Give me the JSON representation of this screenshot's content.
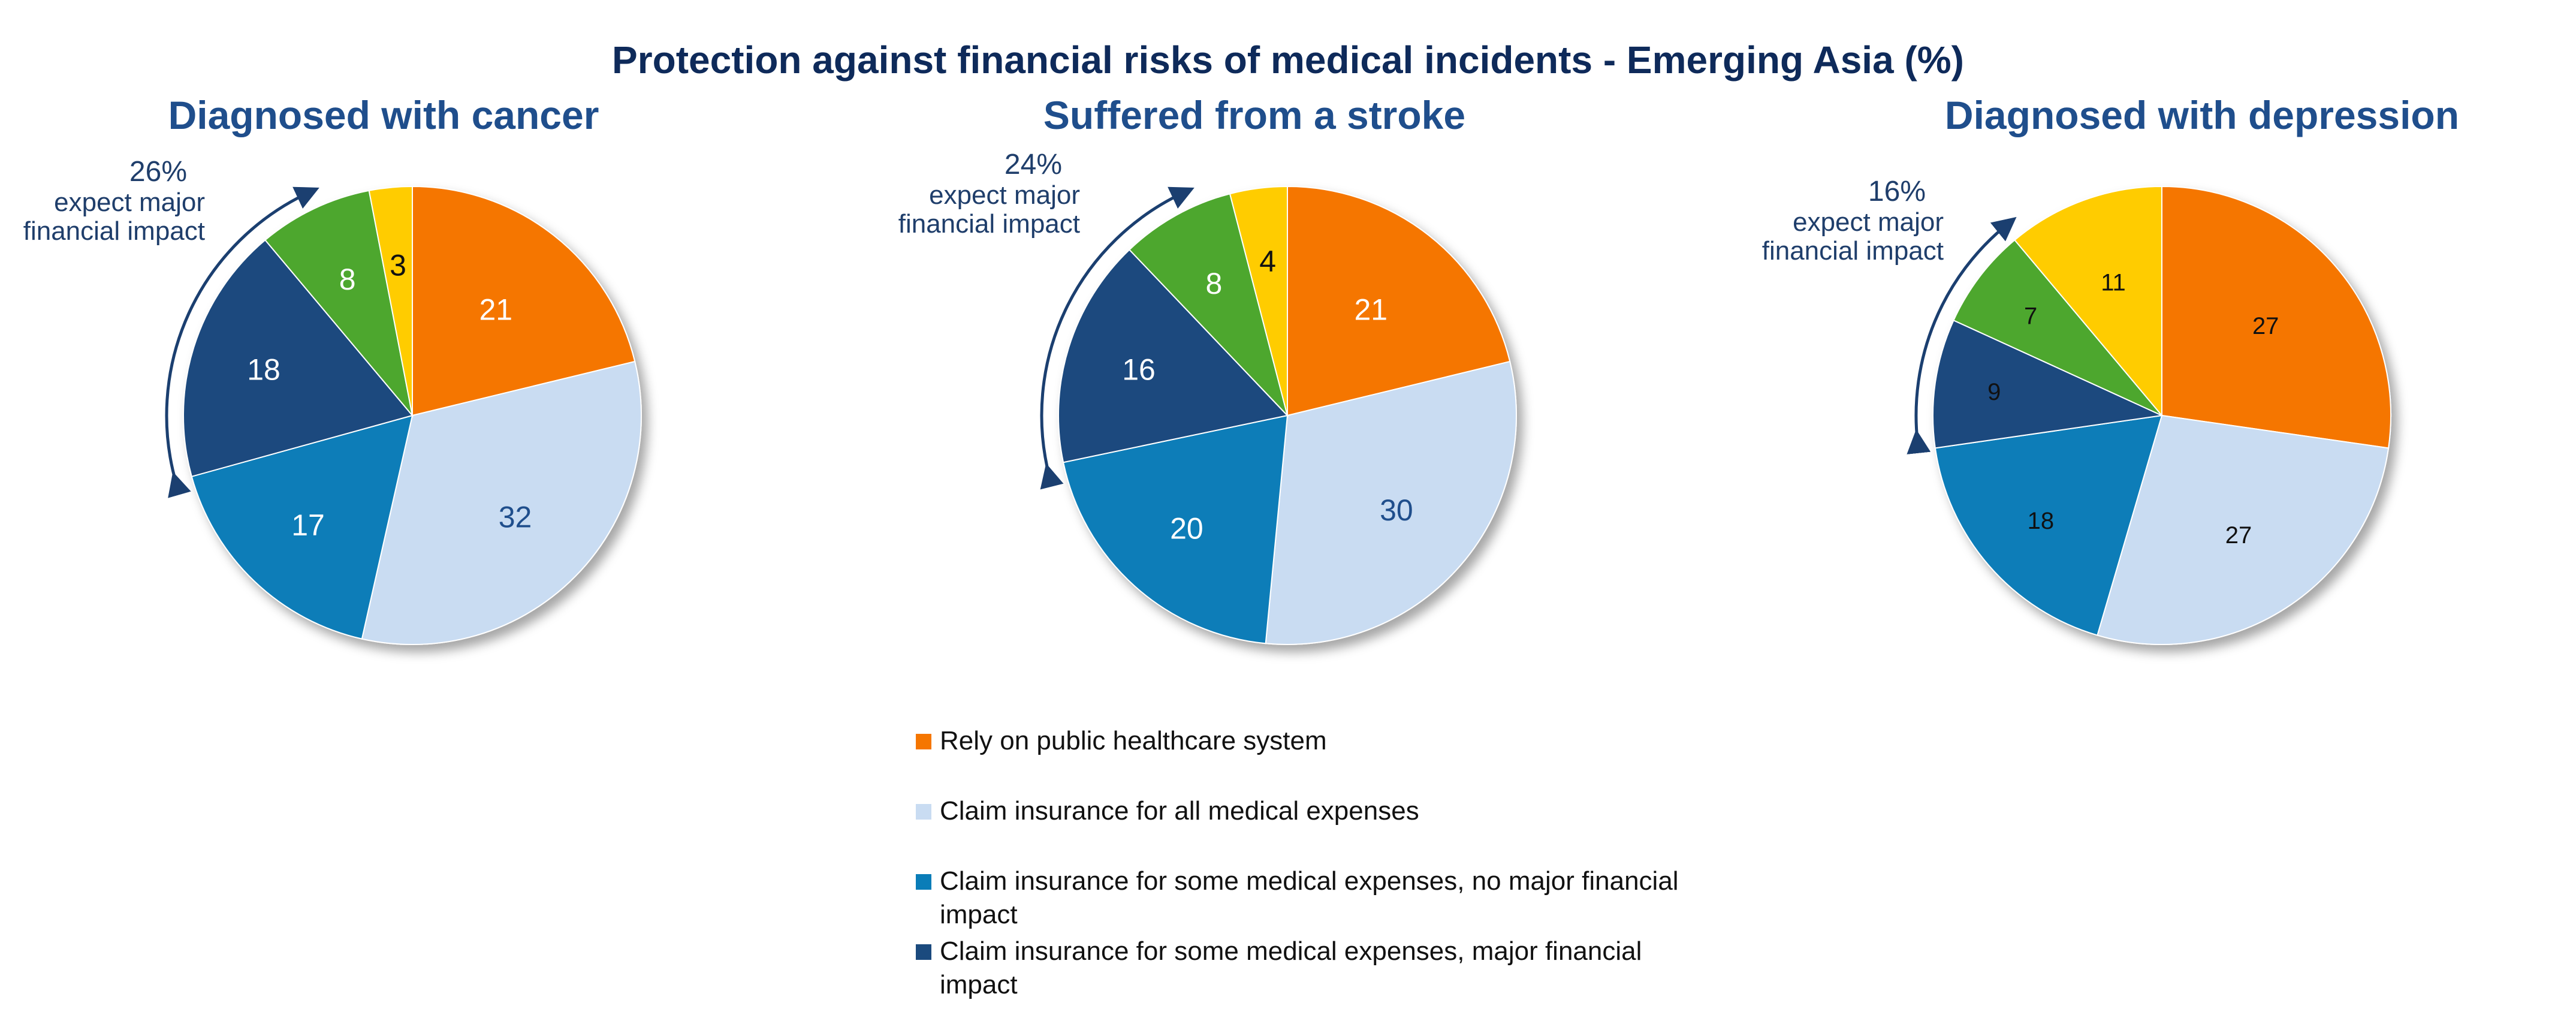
{
  "title": "Protection against financial risks of medical incidents - Emerging Asia (%)",
  "legend": {
    "items": [
      {
        "label_lines": [
          "Rely on public healthcare system"
        ],
        "color": "#F57600"
      },
      {
        "label_lines": [
          "Claim insurance for all medical expenses"
        ],
        "color": "#C9DCF2"
      },
      {
        "label_lines": [
          "Claim insurance for some medical expenses, no major financial",
          "impact"
        ],
        "color": "#0A7DB8"
      },
      {
        "label_lines": [
          "Claim insurance for some medical expenses, major financial",
          "impact"
        ],
        "color": "#1B4A7E"
      }
    ]
  },
  "chart_data": [
    {
      "type": "pie",
      "title": "Diagnosed with cancer",
      "slices": [
        {
          "value": 21,
          "color": "#F57600",
          "label_color": "#ffffff"
        },
        {
          "value": 32,
          "color": "#C9DCF2",
          "label_color": "#1F4E8C"
        },
        {
          "value": 17,
          "color": "#0A7DB8",
          "label_color": "#ffffff"
        },
        {
          "value": 18,
          "color": "#1B4A7E",
          "label_color": "#ffffff"
        },
        {
          "value": 8,
          "color": "#4EA72E",
          "label_color": "#ffffff"
        },
        {
          "value": 3,
          "color": "#FFCC00",
          "label_color": "#111111"
        }
      ],
      "annotation": {
        "percent": "26%",
        "lines": [
          "expect major",
          "financial impact"
        ]
      }
    },
    {
      "type": "pie",
      "title": "Suffered from a stroke",
      "slices": [
        {
          "value": 21,
          "color": "#F57600",
          "label_color": "#ffffff"
        },
        {
          "value": 30,
          "color": "#C9DCF2",
          "label_color": "#1F4E8C"
        },
        {
          "value": 20,
          "color": "#0A7DB8",
          "label_color": "#ffffff"
        },
        {
          "value": 16,
          "color": "#1B4A7E",
          "label_color": "#ffffff"
        },
        {
          "value": 8,
          "color": "#4EA72E",
          "label_color": "#ffffff"
        },
        {
          "value": 4,
          "color": "#FFCC00",
          "label_color": "#111111"
        }
      ],
      "annotation": {
        "percent": "24%",
        "lines": [
          "expect major",
          "financial impact"
        ]
      }
    },
    {
      "type": "pie",
      "title": "Diagnosed with depression",
      "slices": [
        {
          "value": 27,
          "color": "#F57600",
          "label_color": "#111111"
        },
        {
          "value": 27,
          "color": "#C9DCF2",
          "label_color": "#111111"
        },
        {
          "value": 18,
          "color": "#0A7DB8",
          "label_color": "#111111"
        },
        {
          "value": 9,
          "color": "#1B4A7E",
          "label_color": "#111111"
        },
        {
          "value": 7,
          "color": "#4EA72E",
          "label_color": "#111111"
        },
        {
          "value": 11,
          "color": "#FFCC00",
          "label_color": "#111111"
        }
      ],
      "annotation": {
        "percent": "16%",
        "lines": [
          "expect major",
          "financial impact"
        ]
      }
    }
  ]
}
